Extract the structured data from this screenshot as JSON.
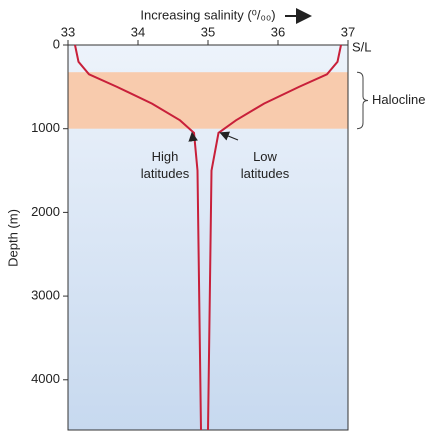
{
  "chart_data": {
    "type": "line",
    "title": "Increasing salinity (⁰/₀₀)",
    "x_end_label": "S/L",
    "ylabel": "Depth (m)",
    "xlim": [
      33,
      37
    ],
    "xticks": [
      33,
      34,
      35,
      36,
      37
    ],
    "ylim": [
      4600,
      0
    ],
    "yticks": [
      0,
      1000,
      2000,
      3000,
      4000
    ],
    "band": {
      "label": "Halocline",
      "range": [
        325,
        1000
      ],
      "color": "#f8cbad"
    },
    "series": [
      {
        "name": "High latitudes",
        "color": "#c8203a",
        "x": [
          33.1,
          33.15,
          33.3,
          33.7,
          34.2,
          34.6,
          34.8,
          34.85,
          34.9
        ],
        "values": [
          0,
          200,
          350,
          500,
          700,
          900,
          1050,
          1500,
          4600
        ]
      },
      {
        "name": "Low latitudes",
        "color": "#c8203a",
        "x": [
          36.9,
          36.85,
          36.7,
          36.3,
          35.8,
          35.4,
          35.15,
          35.05,
          35.0
        ],
        "values": [
          0,
          200,
          350,
          500,
          700,
          900,
          1050,
          1500,
          4600
        ]
      }
    ]
  }
}
